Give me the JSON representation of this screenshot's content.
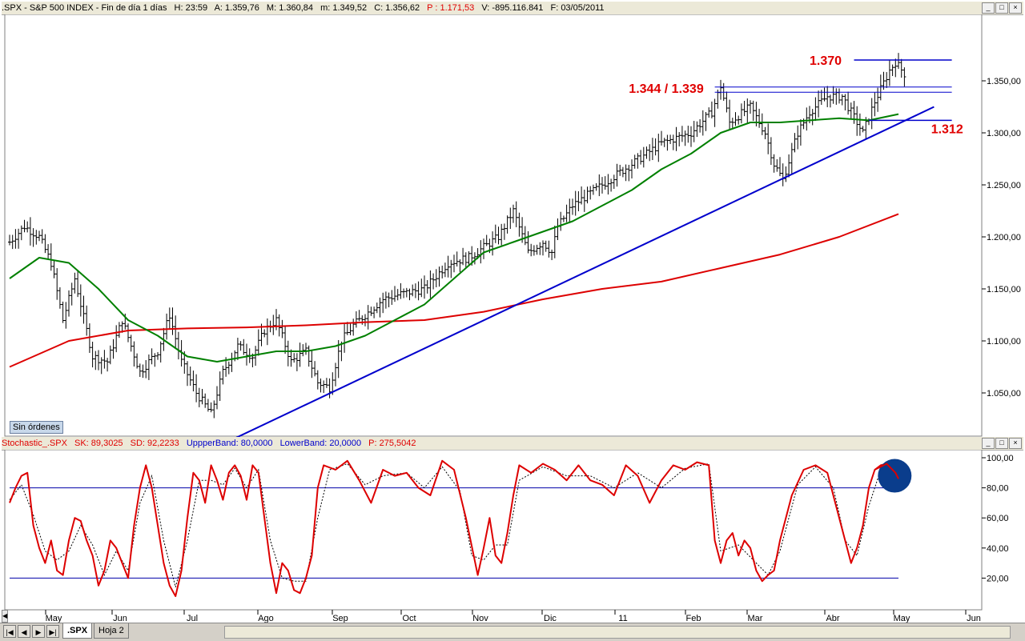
{
  "price_header": {
    "symbol": ".SPX - S&P 500 INDEX - Fin de día 1 días",
    "hour": "H: 23:59",
    "open": "A: 1.359,76",
    "high": "M: 1.360,84",
    "low": "m: 1.349,52",
    "close": "C: 1.356,62",
    "p": "P : 1.171,53",
    "volume": "V: -895.116.841",
    "date": "F: 03/05/2011"
  },
  "stoch_header": {
    "name": "Stochastic_.SPX",
    "sk": "SK: 89,3025",
    "sd": "SD: 92,2233",
    "upper": "UppperBand: 80,0000",
    "lower": "LowerBand: 20,0000",
    "p": "P: 275,5042"
  },
  "window_buttons": [
    "_",
    "□",
    "×"
  ],
  "sin_ordenes": "Sin órdenes",
  "annotations": {
    "a1370": "1.370",
    "a1344": "1.344 / 1.339",
    "a1312": "1.312"
  },
  "tabs": [
    ".SPX",
    "Hoja 2"
  ],
  "nav_buttons": [
    "|◀",
    "◀",
    "▶",
    "▶|"
  ],
  "colors": {
    "price_bars": "#000000",
    "ma_green": "#008000",
    "ma_red": "#dd0000",
    "trendline": "#0000cc",
    "stoch_sk": "#dd0000",
    "stoch_sd": "#000000",
    "band": "#0000aa",
    "annotation": "#e00000",
    "circle": "#0a3d8c"
  },
  "chart_data": [
    {
      "type": "ohlc",
      "title": "S&P 500 INDEX (.SPX) daily",
      "x_labels": [
        "May",
        "Jun",
        "Jul",
        "Ago",
        "Sep",
        "Oct",
        "Nov",
        "Dic",
        "11",
        "Feb",
        "Mar",
        "Abr",
        "May",
        "Jun"
      ],
      "y_ticks": [
        "1.050,00",
        "1.100,00",
        "1.150,00",
        "1.200,00",
        "1.250,00",
        "1.300,00",
        "1.350,00"
      ],
      "ylim": [
        1000,
        1380
      ],
      "close_path": [
        [
          0,
          1195
        ],
        [
          5,
          1210
        ],
        [
          10,
          1200
        ],
        [
          14,
          1175
        ],
        [
          18,
          1120
        ],
        [
          22,
          1160
        ],
        [
          28,
          1085
        ],
        [
          33,
          1080
        ],
        [
          38,
          1120
        ],
        [
          44,
          1070
        ],
        [
          50,
          1090
        ],
        [
          54,
          1125
        ],
        [
          58,
          1080
        ],
        [
          63,
          1050
        ],
        [
          68,
          1030
        ],
        [
          72,
          1070
        ],
        [
          77,
          1095
        ],
        [
          82,
          1085
        ],
        [
          86,
          1110
        ],
        [
          90,
          1120
        ],
        [
          95,
          1080
        ],
        [
          100,
          1090
        ],
        [
          104,
          1060
        ],
        [
          108,
          1055
        ],
        [
          112,
          1100
        ],
        [
          116,
          1115
        ],
        [
          120,
          1125
        ],
        [
          126,
          1140
        ],
        [
          132,
          1145
        ],
        [
          140,
          1150
        ],
        [
          148,
          1175
        ],
        [
          155,
          1180
        ],
        [
          160,
          1190
        ],
        [
          165,
          1200
        ],
        [
          170,
          1225
        ],
        [
          175,
          1185
        ],
        [
          180,
          1195
        ],
        [
          183,
          1185
        ],
        [
          185,
          1210
        ],
        [
          190,
          1230
        ],
        [
          200,
          1250
        ],
        [
          210,
          1270
        ],
        [
          220,
          1290
        ],
        [
          230,
          1300
        ],
        [
          237,
          1320
        ],
        [
          240,
          1345
        ],
        [
          243,
          1310
        ],
        [
          250,
          1325
        ],
        [
          255,
          1300
        ],
        [
          258,
          1270
        ],
        [
          261,
          1255
        ],
        [
          266,
          1300
        ],
        [
          270,
          1320
        ],
        [
          276,
          1335
        ],
        [
          281,
          1335
        ],
        [
          285,
          1315
        ],
        [
          288,
          1300
        ],
        [
          292,
          1330
        ],
        [
          297,
          1360
        ],
        [
          299,
          1368
        ],
        [
          302,
          1357
        ]
      ],
      "moving_average_green": [
        [
          0,
          1160
        ],
        [
          10,
          1180
        ],
        [
          20,
          1175
        ],
        [
          30,
          1150
        ],
        [
          40,
          1120
        ],
        [
          50,
          1105
        ],
        [
          60,
          1085
        ],
        [
          70,
          1080
        ],
        [
          80,
          1085
        ],
        [
          90,
          1090
        ],
        [
          100,
          1090
        ],
        [
          110,
          1095
        ],
        [
          120,
          1105
        ],
        [
          130,
          1120
        ],
        [
          140,
          1135
        ],
        [
          150,
          1160
        ],
        [
          160,
          1185
        ],
        [
          170,
          1195
        ],
        [
          180,
          1205
        ],
        [
          190,
          1215
        ],
        [
          200,
          1230
        ],
        [
          210,
          1245
        ],
        [
          220,
          1265
        ],
        [
          230,
          1280
        ],
        [
          240,
          1300
        ],
        [
          250,
          1310
        ],
        [
          260,
          1310
        ],
        [
          270,
          1312
        ],
        [
          280,
          1314
        ],
        [
          290,
          1312
        ],
        [
          300,
          1318
        ]
      ],
      "moving_average_red": [
        [
          0,
          1075
        ],
        [
          20,
          1100
        ],
        [
          40,
          1110
        ],
        [
          60,
          1112
        ],
        [
          80,
          1113
        ],
        [
          100,
          1115
        ],
        [
          120,
          1118
        ],
        [
          140,
          1120
        ],
        [
          160,
          1128
        ],
        [
          180,
          1140
        ],
        [
          200,
          1150
        ],
        [
          220,
          1157
        ],
        [
          240,
          1170
        ],
        [
          260,
          1183
        ],
        [
          280,
          1200
        ],
        [
          300,
          1222
        ]
      ],
      "trendline": [
        [
          75,
          1005
        ],
        [
          312,
          1325
        ]
      ],
      "levels": [
        {
          "label": "1.370",
          "value": 1370,
          "x": [
            285,
            318
          ]
        },
        {
          "label": "1.344 / 1.339",
          "value": 1344,
          "x": [
            238,
            318
          ]
        },
        {
          "value": 1339,
          "x": [
            238,
            318
          ]
        },
        {
          "label": "1.312",
          "value": 1312,
          "x": [
            290,
            318
          ]
        }
      ]
    },
    {
      "type": "line",
      "title": "Stochastic_.SPX",
      "y_ticks": [
        "20,00",
        "40,00",
        "60,00",
        "80,00",
        "100,00"
      ],
      "ylim": [
        0,
        108
      ],
      "bands": [
        80,
        20
      ],
      "series": [
        {
          "name": "SK",
          "points": [
            [
              0,
              70
            ],
            [
              2,
              80
            ],
            [
              4,
              88
            ],
            [
              6,
              90
            ],
            [
              8,
              55
            ],
            [
              10,
              40
            ],
            [
              12,
              30
            ],
            [
              14,
              45
            ],
            [
              16,
              25
            ],
            [
              18,
              22
            ],
            [
              20,
              45
            ],
            [
              22,
              60
            ],
            [
              24,
              58
            ],
            [
              26,
              45
            ],
            [
              28,
              35
            ],
            [
              30,
              15
            ],
            [
              32,
              25
            ],
            [
              34,
              45
            ],
            [
              36,
              40
            ],
            [
              38,
              30
            ],
            [
              40,
              20
            ],
            [
              42,
              55
            ],
            [
              44,
              80
            ],
            [
              46,
              95
            ],
            [
              48,
              80
            ],
            [
              50,
              55
            ],
            [
              52,
              30
            ],
            [
              54,
              15
            ],
            [
              56,
              8
            ],
            [
              58,
              25
            ],
            [
              60,
              60
            ],
            [
              62,
              90
            ],
            [
              64,
              85
            ],
            [
              66,
              70
            ],
            [
              68,
              95
            ],
            [
              70,
              85
            ],
            [
              72,
              72
            ],
            [
              74,
              90
            ],
            [
              76,
              95
            ],
            [
              78,
              88
            ],
            [
              80,
              72
            ],
            [
              82,
              95
            ],
            [
              84,
              90
            ],
            [
              86,
              60
            ],
            [
              88,
              30
            ],
            [
              90,
              10
            ],
            [
              92,
              30
            ],
            [
              94,
              25
            ],
            [
              96,
              12
            ],
            [
              98,
              10
            ],
            [
              100,
              20
            ],
            [
              102,
              35
            ],
            [
              104,
              80
            ],
            [
              106,
              95
            ],
            [
              110,
              92
            ],
            [
              114,
              98
            ],
            [
              118,
              85
            ],
            [
              122,
              70
            ],
            [
              126,
              92
            ],
            [
              130,
              88
            ],
            [
              134,
              90
            ],
            [
              138,
              80
            ],
            [
              142,
              75
            ],
            [
              146,
              98
            ],
            [
              150,
              92
            ],
            [
              154,
              60
            ],
            [
              158,
              22
            ],
            [
              160,
              40
            ],
            [
              162,
              60
            ],
            [
              164,
              35
            ],
            [
              166,
              30
            ],
            [
              168,
              50
            ],
            [
              170,
              75
            ],
            [
              172,
              95
            ],
            [
              176,
              90
            ],
            [
              180,
              96
            ],
            [
              184,
              92
            ],
            [
              188,
              85
            ],
            [
              192,
              95
            ],
            [
              196,
              85
            ],
            [
              200,
              82
            ],
            [
              204,
              75
            ],
            [
              208,
              95
            ],
            [
              212,
              88
            ],
            [
              216,
              70
            ],
            [
              220,
              85
            ],
            [
              224,
              95
            ],
            [
              228,
              92
            ],
            [
              232,
              97
            ],
            [
              236,
              95
            ],
            [
              238,
              45
            ],
            [
              240,
              30
            ],
            [
              242,
              45
            ],
            [
              244,
              50
            ],
            [
              246,
              35
            ],
            [
              248,
              45
            ],
            [
              250,
              40
            ],
            [
              252,
              25
            ],
            [
              254,
              18
            ],
            [
              256,
              22
            ],
            [
              258,
              25
            ],
            [
              260,
              45
            ],
            [
              264,
              75
            ],
            [
              268,
              92
            ],
            [
              272,
              95
            ],
            [
              276,
              90
            ],
            [
              280,
              60
            ],
            [
              284,
              30
            ],
            [
              286,
              40
            ],
            [
              288,
              55
            ],
            [
              290,
              80
            ],
            [
              292,
              92
            ],
            [
              294,
              95
            ],
            [
              296,
              96
            ],
            [
              298,
              92
            ],
            [
              300,
              88
            ]
          ]
        },
        {
          "name": "SD",
          "points": [
            [
              0,
              72
            ],
            [
              4,
              82
            ],
            [
              8,
              62
            ],
            [
              12,
              38
            ],
            [
              16,
              32
            ],
            [
              20,
              38
            ],
            [
              24,
              55
            ],
            [
              28,
              42
            ],
            [
              32,
              22
            ],
            [
              36,
              38
            ],
            [
              40,
              25
            ],
            [
              44,
              70
            ],
            [
              48,
              88
            ],
            [
              52,
              45
            ],
            [
              56,
              14
            ],
            [
              60,
              45
            ],
            [
              64,
              85
            ],
            [
              68,
              85
            ],
            [
              72,
              82
            ],
            [
              76,
              93
            ],
            [
              80,
              80
            ],
            [
              84,
              92
            ],
            [
              88,
              45
            ],
            [
              92,
              20
            ],
            [
              96,
              18
            ],
            [
              100,
              18
            ],
            [
              104,
              60
            ],
            [
              108,
              92
            ],
            [
              114,
              96
            ],
            [
              120,
              82
            ],
            [
              126,
              88
            ],
            [
              134,
              90
            ],
            [
              140,
              80
            ],
            [
              146,
              94
            ],
            [
              152,
              78
            ],
            [
              156,
              35
            ],
            [
              160,
              32
            ],
            [
              164,
              42
            ],
            [
              168,
              42
            ],
            [
              172,
              85
            ],
            [
              180,
              94
            ],
            [
              188,
              88
            ],
            [
              196,
              88
            ],
            [
              204,
              80
            ],
            [
              212,
              90
            ],
            [
              220,
              80
            ],
            [
              228,
              93
            ],
            [
              236,
              96
            ],
            [
              240,
              38
            ],
            [
              246,
              42
            ],
            [
              252,
              30
            ],
            [
              256,
              22
            ],
            [
              260,
              38
            ],
            [
              266,
              82
            ],
            [
              272,
              94
            ],
            [
              278,
              80
            ],
            [
              282,
              45
            ],
            [
              286,
              35
            ],
            [
              290,
              68
            ],
            [
              294,
              92
            ],
            [
              298,
              95
            ],
            [
              300,
              92
            ]
          ]
        }
      ]
    }
  ]
}
